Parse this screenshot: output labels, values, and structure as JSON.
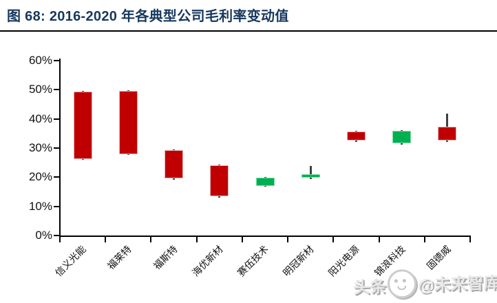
{
  "header": {
    "title": "图 68:  2016-2020 年各典型公司毛利率变动值",
    "title_color": "#17375e"
  },
  "watermark": {
    "prefix": "头条",
    "logo": "future-thinktank-logo",
    "handle": "@未来智库"
  },
  "chart_data": {
    "type": "candlestick",
    "title": "2016-2020 年各典型公司毛利率变动值",
    "unit": "%",
    "ylim": [
      0,
      60
    ],
    "ytick_step": 10,
    "ytick_labels": [
      "0%",
      "10%",
      "20%",
      "30%",
      "40%",
      "50%",
      "60%"
    ],
    "grid": false,
    "legend": "none",
    "categories": [
      "信义光能",
      "福莱特",
      "福斯特",
      "海优新材",
      "赛伍技术",
      "明冠新材",
      "阳光电源",
      "锦浪科技",
      "固德威"
    ],
    "series": [
      {
        "name": "信义光能",
        "open_2016": 26.3,
        "close_2020": 49.3,
        "low": 26.3,
        "high": 49.3,
        "direction": "up"
      },
      {
        "name": "福莱特",
        "open_2016": 27.9,
        "close_2020": 49.6,
        "low": 27.9,
        "high": 49.6,
        "direction": "up"
      },
      {
        "name": "福斯特",
        "open_2016": 19.6,
        "close_2020": 29.2,
        "low": 19.6,
        "high": 29.2,
        "direction": "up"
      },
      {
        "name": "海优新材",
        "open_2016": 13.4,
        "close_2020": 24.0,
        "low": 13.4,
        "high": 24.0,
        "direction": "up"
      },
      {
        "name": "赛伍技术",
        "open_2016": 19.8,
        "close_2020": 17.1,
        "low": 17.1,
        "high": 19.8,
        "direction": "down"
      },
      {
        "name": "明冠新材",
        "open_2016": 21.0,
        "close_2020": 19.8,
        "low": 19.8,
        "high": 23.6,
        "direction": "down"
      },
      {
        "name": "阳光电源",
        "open_2016": 32.5,
        "close_2020": 35.6,
        "low": 32.5,
        "high": 35.6,
        "direction": "up"
      },
      {
        "name": "锦浪科技",
        "open_2016": 35.8,
        "close_2020": 31.6,
        "low": 31.6,
        "high": 35.8,
        "direction": "down"
      },
      {
        "name": "固德威",
        "open_2016": 32.5,
        "close_2020": 37.3,
        "low": 32.5,
        "high": 41.4,
        "direction": "up"
      }
    ],
    "colors": {
      "up": "#c00000",
      "down": "#00b050",
      "wick": "#3f3f3f",
      "axis": "#000000"
    }
  }
}
